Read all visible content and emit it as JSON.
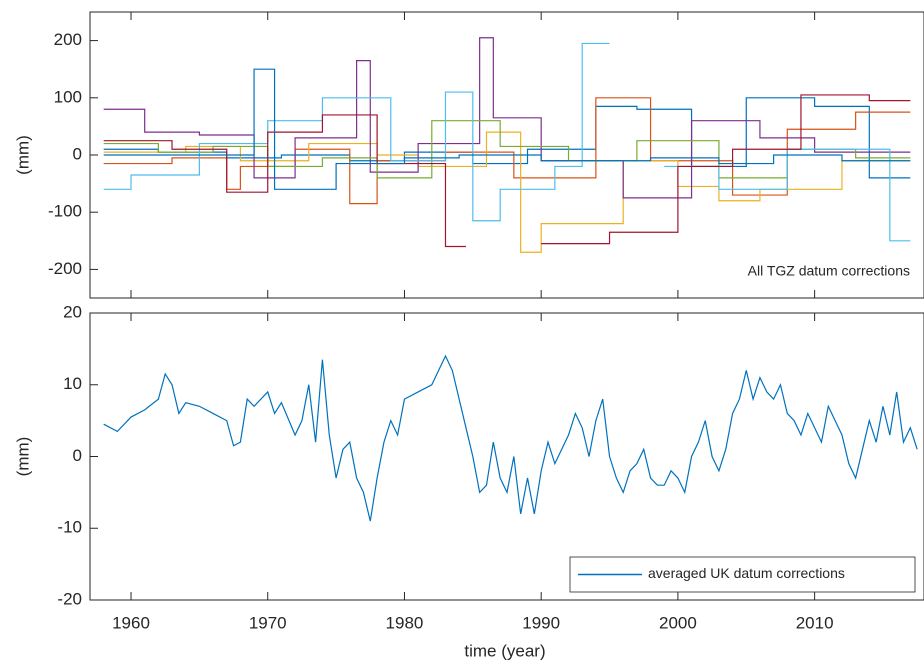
{
  "chart_data": [
    {
      "type": "line",
      "drawstyle": "steps-post",
      "annotation": "All TGZ datum corrections",
      "ylabel": "(mm)",
      "xlim": [
        1957,
        2018
      ],
      "xticks": [
        1960,
        1970,
        1980,
        1990,
        2000,
        2010
      ],
      "ylim": [
        -250,
        250
      ],
      "yticks": [
        -200,
        -100,
        0,
        100,
        200
      ],
      "series": [
        {
          "color": "#0072BD",
          "x": [
            1958,
            1962,
            1967,
            1971,
            1976,
            1980,
            1985,
            1989,
            1994,
            1997,
            2001,
            2005,
            2010,
            2014,
            2017
          ],
          "values": [
            10,
            5,
            -5,
            0,
            -10,
            5,
            -15,
            10,
            85,
            80,
            -20,
            100,
            85,
            -40,
            -40
          ]
        },
        {
          "color": "#D95319",
          "x": [
            1958,
            1963,
            1967,
            1968,
            1972,
            1976,
            1978,
            1983,
            1988,
            1994,
            1998,
            2004,
            2008,
            2013,
            2017
          ],
          "values": [
            -15,
            -5,
            -60,
            -20,
            10,
            -85,
            -10,
            5,
            -40,
            100,
            -10,
            -70,
            45,
            75,
            75
          ]
        },
        {
          "color": "#EDB120",
          "x": [
            1958,
            1964,
            1968,
            1973,
            1978,
            1981,
            1986,
            1988.5,
            1990,
            1996,
            2000,
            2003,
            2006,
            2012,
            2017
          ],
          "values": [
            5,
            15,
            -10,
            20,
            0,
            -20,
            40,
            -170,
            -120,
            -10,
            -55,
            -80,
            -60,
            -10,
            -10
          ]
        },
        {
          "color": "#7E2F8E",
          "x": [
            1958,
            1961,
            1965,
            1969,
            1972,
            1976.5,
            1977.5,
            1981,
            1985.5,
            1986.5,
            1990,
            1996,
            2001,
            2006,
            2010,
            2017
          ],
          "values": [
            80,
            40,
            35,
            -40,
            30,
            165,
            -30,
            20,
            205,
            65,
            -10,
            -75,
            60,
            30,
            5,
            5
          ]
        },
        {
          "color": "#77AC30",
          "x": [
            1958,
            1962,
            1966,
            1970,
            1974,
            1978,
            1982,
            1987,
            1992,
            1997,
            2003,
            2008,
            2013,
            2017
          ],
          "values": [
            20,
            5,
            15,
            -20,
            -5,
            -40,
            60,
            15,
            -10,
            25,
            -40,
            10,
            -5,
            -5
          ]
        },
        {
          "color": "#4DBEEE",
          "x": [
            1958,
            1960,
            1965,
            1970,
            1974,
            1979,
            1983,
            1985,
            1987,
            1991,
            1993,
            1995,
            1999,
            2003,
            2008,
            2015.5,
            2017
          ],
          "values": [
            -60,
            -35,
            20,
            60,
            100,
            -10,
            110,
            -115,
            -60,
            -20,
            195,
            null,
            -20,
            -60,
            10,
            -150,
            -150
          ]
        },
        {
          "color": "#A2142F",
          "x": [
            1958,
            1963,
            1967,
            1970,
            1974,
            1978,
            1983,
            1984.5,
            1990,
            1995,
            2000,
            2004,
            2009,
            2014,
            2017
          ],
          "values": [
            25,
            10,
            -65,
            40,
            70,
            -15,
            -160,
            null,
            -155,
            -135,
            -20,
            10,
            105,
            95,
            95
          ]
        },
        {
          "color": "#0072BD",
          "x": [
            1958,
            1965,
            1969,
            1970.5,
            1975,
            1980,
            1984,
            1990,
            1998,
            2003,
            2007,
            2012,
            2017
          ],
          "values": [
            0,
            0,
            150,
            -60,
            -15,
            -5,
            0,
            -10,
            -5,
            -15,
            0,
            -10,
            -10
          ]
        }
      ]
    },
    {
      "type": "line",
      "ylabel": "(mm)",
      "xlabel": "time (year)",
      "legend": "lower right",
      "xlim": [
        1957,
        2018
      ],
      "xticks": [
        1960,
        1970,
        1980,
        1990,
        2000,
        2010
      ],
      "ylim": [
        -20,
        20
      ],
      "yticks": [
        -20,
        -10,
        0,
        10,
        20
      ],
      "series": [
        {
          "name": "averaged UK datum corrections",
          "color": "#0072BD",
          "x": [
            1958,
            1959,
            1960,
            1961,
            1962,
            1962.5,
            1963,
            1963.5,
            1964,
            1965,
            1966,
            1967,
            1967.5,
            1968,
            1968.5,
            1969,
            1970,
            1970.5,
            1971,
            1972,
            1972.5,
            1973,
            1973.5,
            1974,
            1974.5,
            1975,
            1975.5,
            1976,
            1976.5,
            1977,
            1977.5,
            1978,
            1978.5,
            1979,
            1979.5,
            1980,
            1981,
            1982,
            1982.5,
            1983,
            1983.5,
            1984,
            1984.5,
            1985,
            1985.5,
            1986,
            1986.5,
            1987,
            1987.5,
            1988,
            1988.5,
            1989,
            1989.5,
            1990,
            1990.5,
            1991,
            1992,
            1992.5,
            1993,
            1993.5,
            1994,
            1994.5,
            1995,
            1995.5,
            1996,
            1996.5,
            1997,
            1997.5,
            1998,
            1998.5,
            1999,
            1999.5,
            2000,
            2000.5,
            2001,
            2001.5,
            2002,
            2002.5,
            2003,
            2003.5,
            2004,
            2004.5,
            2005,
            2005.5,
            2006,
            2006.5,
            2007,
            2007.5,
            2008,
            2008.5,
            2009,
            2009.5,
            2010,
            2010.5,
            2011,
            2011.5,
            2012,
            2012.5,
            2013,
            2013.5,
            2014,
            2014.5,
            2015,
            2015.5,
            2016,
            2016.5,
            2017,
            2017.5
          ],
          "values": [
            4.5,
            3.5,
            5.5,
            6.5,
            8,
            11.5,
            10,
            6,
            7.5,
            7,
            6,
            5,
            1.5,
            2,
            8,
            7,
            9,
            6,
            7.5,
            3,
            5,
            10,
            2,
            13.5,
            3,
            -3,
            1,
            2,
            -3,
            -5,
            -9,
            -3,
            2,
            5,
            3,
            8,
            9,
            10,
            12,
            14,
            12,
            8,
            4,
            0,
            -5,
            -4,
            2,
            -3,
            -5,
            0,
            -8,
            -3,
            -8,
            -2,
            2,
            -1,
            3,
            6,
            4,
            0,
            5,
            8,
            0,
            -3,
            -5,
            -2,
            -1,
            1,
            -3,
            -4,
            -4,
            -2,
            -3,
            -5,
            0,
            2,
            5,
            0,
            -2,
            1,
            6,
            8,
            12,
            8,
            11,
            9,
            8,
            10,
            6,
            5,
            3,
            6,
            4,
            2,
            7,
            5,
            3,
            -1,
            -3,
            1,
            5,
            2,
            7,
            3,
            9,
            2,
            4,
            1
          ]
        }
      ]
    }
  ]
}
